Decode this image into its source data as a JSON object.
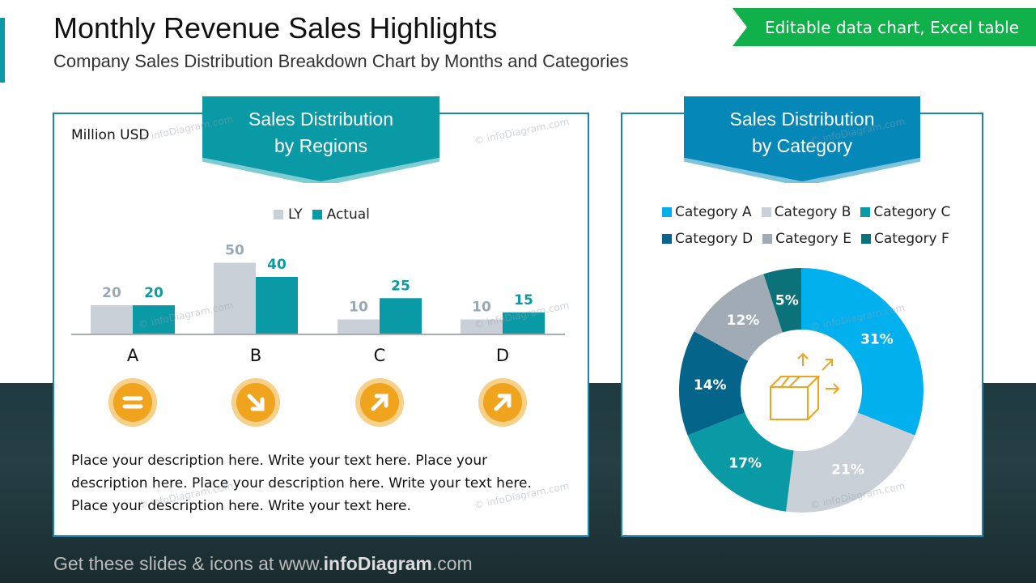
{
  "header": {
    "title": "Monthly Revenue Sales Highlights",
    "subtitle": "Company Sales Distribution Breakdown Chart by Months and Categories",
    "badge": "Editable data chart, Excel table"
  },
  "colors": {
    "teal": "#0a9aa6",
    "blue": "#0587b8",
    "green": "#10b04a",
    "orange": "#f0a31c",
    "ly_gray": "#c9d0d7"
  },
  "left_panel": {
    "ribbon_line1": "Sales Distribution",
    "ribbon_line2": "by Regions",
    "unit": "Million USD",
    "trend_icons": [
      "equal-icon",
      "arrow-down-right-icon",
      "arrow-up-right-icon",
      "arrow-up-right-icon"
    ],
    "description": "Place your description here. Write your text here. Place your description here. Place your description here. Write your text here. Place your description here. Write your text here."
  },
  "right_panel": {
    "ribbon_line1": "Sales Distribution",
    "ribbon_line2": "by Category",
    "center_icon": "box-shipping-icon"
  },
  "watermark": "© infoDiagram.com",
  "footer": {
    "prefix": "Get these slides & icons at www.",
    "brand": "infoDiagram",
    "suffix": ".com"
  },
  "chart_data": [
    {
      "type": "bar",
      "categories": [
        "A",
        "B",
        "C",
        "D"
      ],
      "ylabel": "Million USD",
      "legend_position": "top",
      "grid": false,
      "series": [
        {
          "name": "LY",
          "values": [
            20,
            50,
            10,
            10
          ],
          "color": "#c9d0d7",
          "label_color": "#9aa8b6"
        },
        {
          "name": "Actual",
          "values": [
            20,
            40,
            25,
            15
          ],
          "color": "#0a9aa6",
          "label_color": "#0a9aa6"
        }
      ]
    },
    {
      "type": "pie",
      "donut": true,
      "legend_position": "top",
      "categories": [
        "Category A",
        "Category B",
        "Category C",
        "Category D",
        "Category E",
        "Category F"
      ],
      "values": [
        31,
        21,
        17,
        14,
        12,
        5
      ],
      "labels": [
        "31%",
        "21%",
        "17%",
        "14%",
        "12%",
        "5%"
      ],
      "colors": [
        "#03b0ee",
        "#c9d0d7",
        "#0a9aa6",
        "#04648a",
        "#a0abb6",
        "#0b7279"
      ]
    }
  ]
}
